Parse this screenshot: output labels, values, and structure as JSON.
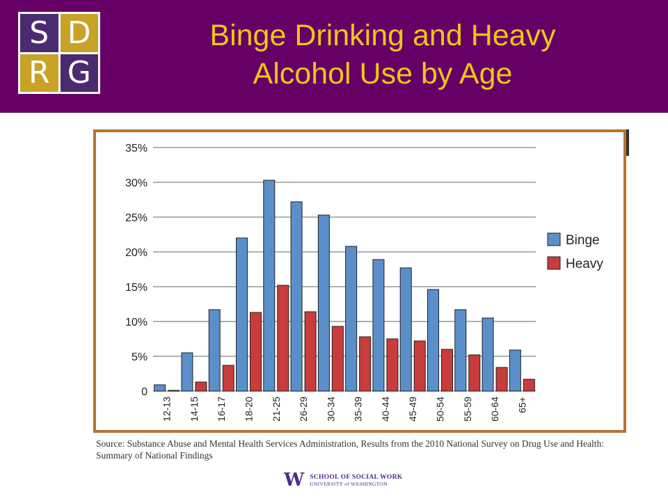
{
  "header": {
    "logo_letters": [
      "S",
      "D",
      "R",
      "G"
    ],
    "title_line1": "Binge Drinking and Heavy",
    "title_line2": "Alcohol Use by Age"
  },
  "colors": {
    "banner": "#660066",
    "title": "#f0c419",
    "binge": "#5b8fc9",
    "heavy": "#c83c3c",
    "frame": "#b87333"
  },
  "chart_data": {
    "type": "bar",
    "categories": [
      "12-13",
      "14-15",
      "16-17",
      "18-20",
      "21-25",
      "26-29",
      "30-34",
      "35-39",
      "40-44",
      "45-49",
      "50-54",
      "55-59",
      "60-64",
      "65+"
    ],
    "series": [
      {
        "name": "Binge",
        "values": [
          0.9,
          5.5,
          11.7,
          22.0,
          30.3,
          27.2,
          25.3,
          20.8,
          18.9,
          17.7,
          14.6,
          11.7,
          10.5,
          5.9
        ]
      },
      {
        "name": "Heavy",
        "values": [
          0.1,
          1.3,
          3.7,
          11.3,
          15.2,
          11.4,
          9.3,
          7.8,
          7.5,
          7.2,
          6.0,
          5.2,
          3.4,
          1.7
        ]
      }
    ],
    "ylim": [
      0,
      35
    ],
    "yticks": [
      "0",
      "5%",
      "10%",
      "15%",
      "20%",
      "25%",
      "30%",
      "35%"
    ],
    "grid": true,
    "legend": "right"
  },
  "source": {
    "text": "Source: Substance Abuse and Mental Health Services Administration, Results from the 2010 National Survey on Drug Use and Health: Summary of National Findings"
  },
  "footer": {
    "mark": "W",
    "line1": "SCHOOL OF SOCIAL WORK",
    "line2": "UNIVERSITY of WASHINGTON"
  }
}
